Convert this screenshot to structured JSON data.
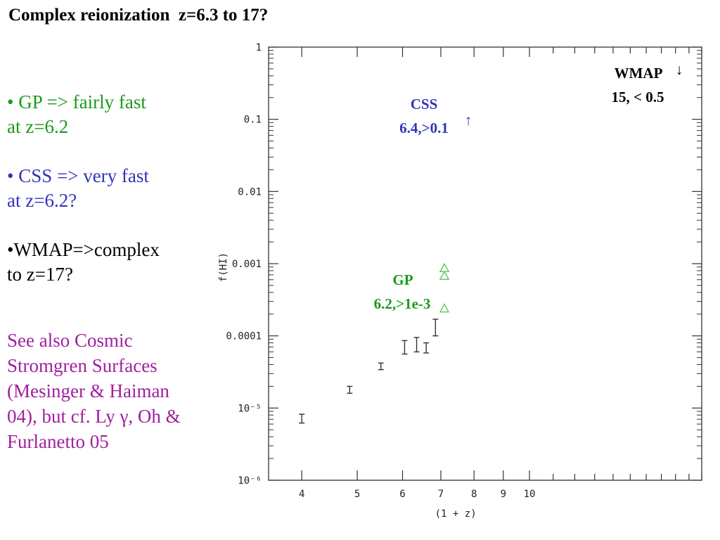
{
  "title": "Complex reionization  z=6.3 to 17?",
  "bullets": {
    "gp": [
      "• GP => fairly fast",
      "at z=6.2"
    ],
    "css": [
      "• CSS => very fast",
      "at z=6.2?"
    ],
    "wmap": [
      "•WMAP=>complex",
      "to z=17?"
    ],
    "see_also": [
      "See also Cosmic",
      "Stromgren Surfaces",
      "(Mesinger & Haiman",
      "04), but cf. Ly γ, Oh &",
      "Furlanetto 05"
    ]
  },
  "colors": {
    "gp": "#1a9a1a",
    "css": "#3333bb",
    "see_also": "#a0209f",
    "gp_markers": "#66cc66",
    "axis": "#333333"
  },
  "chart_data": {
    "type": "scatter",
    "xlabel": "(1 + z)",
    "ylabel": "f(HI)",
    "x_scale": "log",
    "y_scale": "log",
    "xlim": [
      3.5,
      20
    ],
    "ylim": [
      1e-06,
      1
    ],
    "x_ticks": [
      {
        "value": 4,
        "label": "4"
      },
      {
        "value": 5,
        "label": "5"
      },
      {
        "value": 6,
        "label": "6"
      },
      {
        "value": 7,
        "label": "7"
      },
      {
        "value": 8,
        "label": "8"
      },
      {
        "value": 9,
        "label": "9"
      },
      {
        "value": 10,
        "label": "10"
      }
    ],
    "y_ticks": [
      {
        "value": 1,
        "label": "1"
      },
      {
        "value": 0.1,
        "label": "0.1"
      },
      {
        "value": 0.01,
        "label": "0.01"
      },
      {
        "value": 0.001,
        "label": "0.001"
      },
      {
        "value": 0.0001,
        "label": "0.0001"
      },
      {
        "value": 1e-05,
        "label": "10⁻⁵"
      },
      {
        "value": 1e-06,
        "label": "10⁻⁶"
      }
    ],
    "series": [
      {
        "marker": "errorbar",
        "points": [
          {
            "x": 4.0,
            "y_low": 6.2e-06,
            "y_high": 8.2e-06
          },
          {
            "x": 4.85,
            "y_low": 1.6e-05,
            "y_high": 2e-05
          },
          {
            "x": 5.5,
            "y_low": 3.4e-05,
            "y_high": 4.2e-05
          },
          {
            "x": 6.05,
            "y_low": 5.6e-05,
            "y_high": 8.6e-05
          },
          {
            "x": 6.35,
            "y_low": 6e-05,
            "y_high": 9.5e-05
          },
          {
            "x": 6.6,
            "y_low": 5.8e-05,
            "y_high": 8e-05
          },
          {
            "x": 6.85,
            "y_low": 0.0001,
            "y_high": 0.00017
          }
        ]
      },
      {
        "marker": "triangle",
        "points": [
          {
            "x": 7.1,
            "y": 0.00087
          },
          {
            "x": 7.1,
            "y": 0.00068
          },
          {
            "x": 7.1,
            "y": 0.00024
          }
        ]
      }
    ],
    "annotations": [
      {
        "id": "css",
        "lines": [
          "CSS",
          "6.4,>0.1"
        ],
        "arrow": "↑"
      },
      {
        "id": "gp",
        "lines": [
          "GP",
          "6.2,>1e-3"
        ]
      },
      {
        "id": "wmap",
        "lines": [
          "WMAP",
          "15, < 0.5"
        ],
        "arrow": "↓"
      }
    ]
  }
}
